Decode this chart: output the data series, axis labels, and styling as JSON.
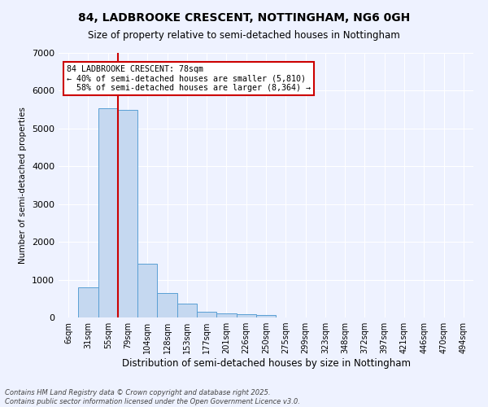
{
  "title": "84, LADBROOKE CRESCENT, NOTTINGHAM, NG6 0GH",
  "subtitle": "Size of property relative to semi-detached houses in Nottingham",
  "xlabel": "Distribution of semi-detached houses by size in Nottingham",
  "ylabel": "Number of semi-detached properties",
  "categories": [
    "6sqm",
    "31sqm",
    "55sqm",
    "79sqm",
    "104sqm",
    "128sqm",
    "153sqm",
    "177sqm",
    "201sqm",
    "226sqm",
    "250sqm",
    "275sqm",
    "299sqm",
    "323sqm",
    "348sqm",
    "372sqm",
    "397sqm",
    "421sqm",
    "446sqm",
    "470sqm",
    "494sqm"
  ],
  "values": [
    5,
    790,
    5530,
    5490,
    1430,
    650,
    360,
    155,
    100,
    80,
    60,
    0,
    0,
    0,
    0,
    0,
    0,
    0,
    0,
    0,
    0
  ],
  "bar_color": "#c5d8f0",
  "bar_edge_color": "#5a9fd4",
  "property_label": "84 LADBROOKE CRESCENT: 78sqm",
  "pct_smaller": "40%",
  "pct_smaller_count": "5,810",
  "pct_larger": "58%",
  "pct_larger_count": "8,364",
  "annotation_box_color": "#cc0000",
  "line_color": "#cc0000",
  "line_x_index": 2.5,
  "ylim": [
    0,
    7000
  ],
  "yticks": [
    0,
    1000,
    2000,
    3000,
    4000,
    5000,
    6000,
    7000
  ],
  "background_color": "#eef2ff",
  "grid_color": "#ffffff",
  "footer": "Contains HM Land Registry data © Crown copyright and database right 2025.\nContains public sector information licensed under the Open Government Licence v3.0."
}
